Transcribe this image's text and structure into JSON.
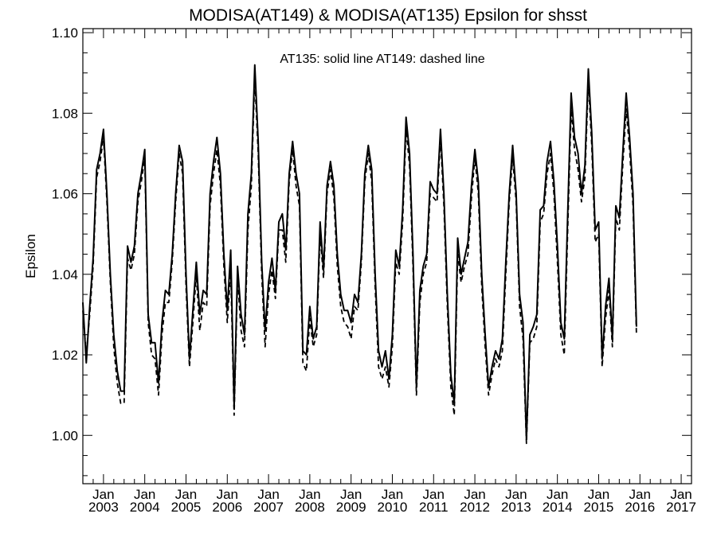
{
  "chart_data": {
    "type": "line",
    "title": "MODISA(AT149) & MODISA(AT135)  Epsilon for shsst",
    "annotation": "AT135: solid line   AT149: dashed line",
    "xlabel": "",
    "ylabel": "Epsilon",
    "ylim": [
      0.988,
      1.101
    ],
    "xlim": [
      "2002-07",
      "2017-04"
    ],
    "yticks": [
      "1.00",
      "1.02",
      "1.04",
      "1.06",
      "1.08",
      "1.10"
    ],
    "xticks": [
      {
        "top": "Jan",
        "bottom": "2003",
        "date": "2003-01"
      },
      {
        "top": "Jan",
        "bottom": "2004",
        "date": "2004-01"
      },
      {
        "top": "Jan",
        "bottom": "2005",
        "date": "2005-01"
      },
      {
        "top": "Jan",
        "bottom": "2006",
        "date": "2006-01"
      },
      {
        "top": "Jan",
        "bottom": "2007",
        "date": "2007-01"
      },
      {
        "top": "Jan",
        "bottom": "2008",
        "date": "2008-01"
      },
      {
        "top": "Jan",
        "bottom": "2009",
        "date": "2009-01"
      },
      {
        "top": "Jan",
        "bottom": "2010",
        "date": "2010-01"
      },
      {
        "top": "Jan",
        "bottom": "2011",
        "date": "2011-01"
      },
      {
        "top": "Jan",
        "bottom": "2012",
        "date": "2012-01"
      },
      {
        "top": "Jan",
        "bottom": "2013",
        "date": "2013-01"
      },
      {
        "top": "Jan",
        "bottom": "2014",
        "date": "2014-01"
      },
      {
        "top": "Jan",
        "bottom": "2015",
        "date": "2015-01"
      },
      {
        "top": "Jan",
        "bottom": "2016",
        "date": "2016-01"
      },
      {
        "top": "Jan",
        "bottom": "2017",
        "date": "2017-01"
      }
    ],
    "grid": false,
    "start": "2002-07",
    "series": [
      {
        "name": "AT135",
        "style": "solid",
        "color": "#000000",
        "values": [
          1.033,
          1.018,
          1.032,
          1.044,
          1.066,
          1.07,
          1.076,
          1.06,
          1.04,
          1.025,
          1.016,
          1.011,
          1.011,
          1.047,
          1.043,
          1.047,
          1.06,
          1.065,
          1.071,
          1.03,
          1.023,
          1.023,
          1.013,
          1.028,
          1.036,
          1.035,
          1.045,
          1.06,
          1.072,
          1.068,
          1.04,
          1.019,
          1.031,
          1.043,
          1.03,
          1.036,
          1.035,
          1.06,
          1.068,
          1.074,
          1.065,
          1.045,
          1.031,
          1.046,
          1.007,
          1.042,
          1.03,
          1.025,
          1.055,
          1.065,
          1.092,
          1.073,
          1.043,
          1.026,
          1.038,
          1.044,
          1.036,
          1.053,
          1.055,
          1.046,
          1.065,
          1.073,
          1.065,
          1.06,
          1.021,
          1.02,
          1.032,
          1.024,
          1.027,
          1.053,
          1.041,
          1.062,
          1.068,
          1.062,
          1.045,
          1.035,
          1.031,
          1.031,
          1.028,
          1.035,
          1.033,
          1.045,
          1.065,
          1.072,
          1.066,
          1.04,
          1.021,
          1.017,
          1.021,
          1.014,
          1.025,
          1.046,
          1.042,
          1.056,
          1.079,
          1.07,
          1.045,
          1.012,
          1.036,
          1.042,
          1.045,
          1.063,
          1.061,
          1.06,
          1.076,
          1.06,
          1.035,
          1.015,
          1.008,
          1.049,
          1.04,
          1.044,
          1.048,
          1.062,
          1.071,
          1.063,
          1.04,
          1.025,
          1.012,
          1.017,
          1.021,
          1.019,
          1.024,
          1.043,
          1.06,
          1.072,
          1.06,
          1.035,
          1.028,
          0.999,
          1.025,
          1.027,
          1.03,
          1.056,
          1.057,
          1.068,
          1.073,
          1.063,
          1.047,
          1.028,
          1.024,
          1.055,
          1.085,
          1.074,
          1.07,
          1.06,
          1.067,
          1.091,
          1.075,
          1.051,
          1.053,
          1.019,
          1.032,
          1.039,
          1.024,
          1.057,
          1.054,
          1.07,
          1.085,
          1.074,
          1.06,
          1.027
        ]
      },
      {
        "name": "AT149",
        "style": "dashed",
        "color": "#000000",
        "values": [
          1.031,
          1.02,
          1.03,
          1.042,
          1.064,
          1.068,
          1.074,
          1.058,
          1.038,
          1.022,
          1.013,
          1.008,
          1.008,
          1.044,
          1.041,
          1.045,
          1.058,
          1.063,
          1.069,
          1.028,
          1.02,
          1.019,
          1.01,
          1.025,
          1.033,
          1.033,
          1.043,
          1.058,
          1.07,
          1.065,
          1.037,
          1.017,
          1.028,
          1.04,
          1.026,
          1.033,
          1.032,
          1.057,
          1.065,
          1.071,
          1.062,
          1.042,
          1.028,
          1.041,
          1.005,
          1.039,
          1.026,
          1.022,
          1.051,
          1.062,
          1.089,
          1.07,
          1.04,
          1.022,
          1.035,
          1.041,
          1.034,
          1.051,
          1.051,
          1.043,
          1.063,
          1.071,
          1.062,
          1.057,
          1.018,
          1.016,
          1.029,
          1.022,
          1.025,
          1.05,
          1.039,
          1.06,
          1.066,
          1.059,
          1.042,
          1.032,
          1.028,
          1.027,
          1.024,
          1.032,
          1.031,
          1.043,
          1.063,
          1.07,
          1.063,
          1.037,
          1.017,
          1.014,
          1.017,
          1.012,
          1.022,
          1.043,
          1.04,
          1.053,
          1.076,
          1.067,
          1.042,
          1.01,
          1.033,
          1.04,
          1.043,
          1.06,
          1.059,
          1.058,
          1.074,
          1.057,
          1.032,
          1.012,
          1.005,
          1.045,
          1.038,
          1.042,
          1.045,
          1.059,
          1.069,
          1.06,
          1.037,
          1.022,
          1.01,
          1.015,
          1.019,
          1.017,
          1.021,
          1.04,
          1.058,
          1.069,
          1.058,
          1.032,
          1.024,
          0.998,
          1.023,
          1.024,
          1.027,
          1.053,
          1.055,
          1.065,
          1.07,
          1.06,
          1.043,
          1.025,
          1.02,
          1.051,
          1.081,
          1.071,
          1.066,
          1.058,
          1.064,
          1.088,
          1.072,
          1.048,
          1.05,
          1.017,
          1.029,
          1.036,
          1.022,
          1.054,
          1.051,
          1.067,
          1.081,
          1.071,
          1.057,
          1.025
        ]
      }
    ]
  }
}
